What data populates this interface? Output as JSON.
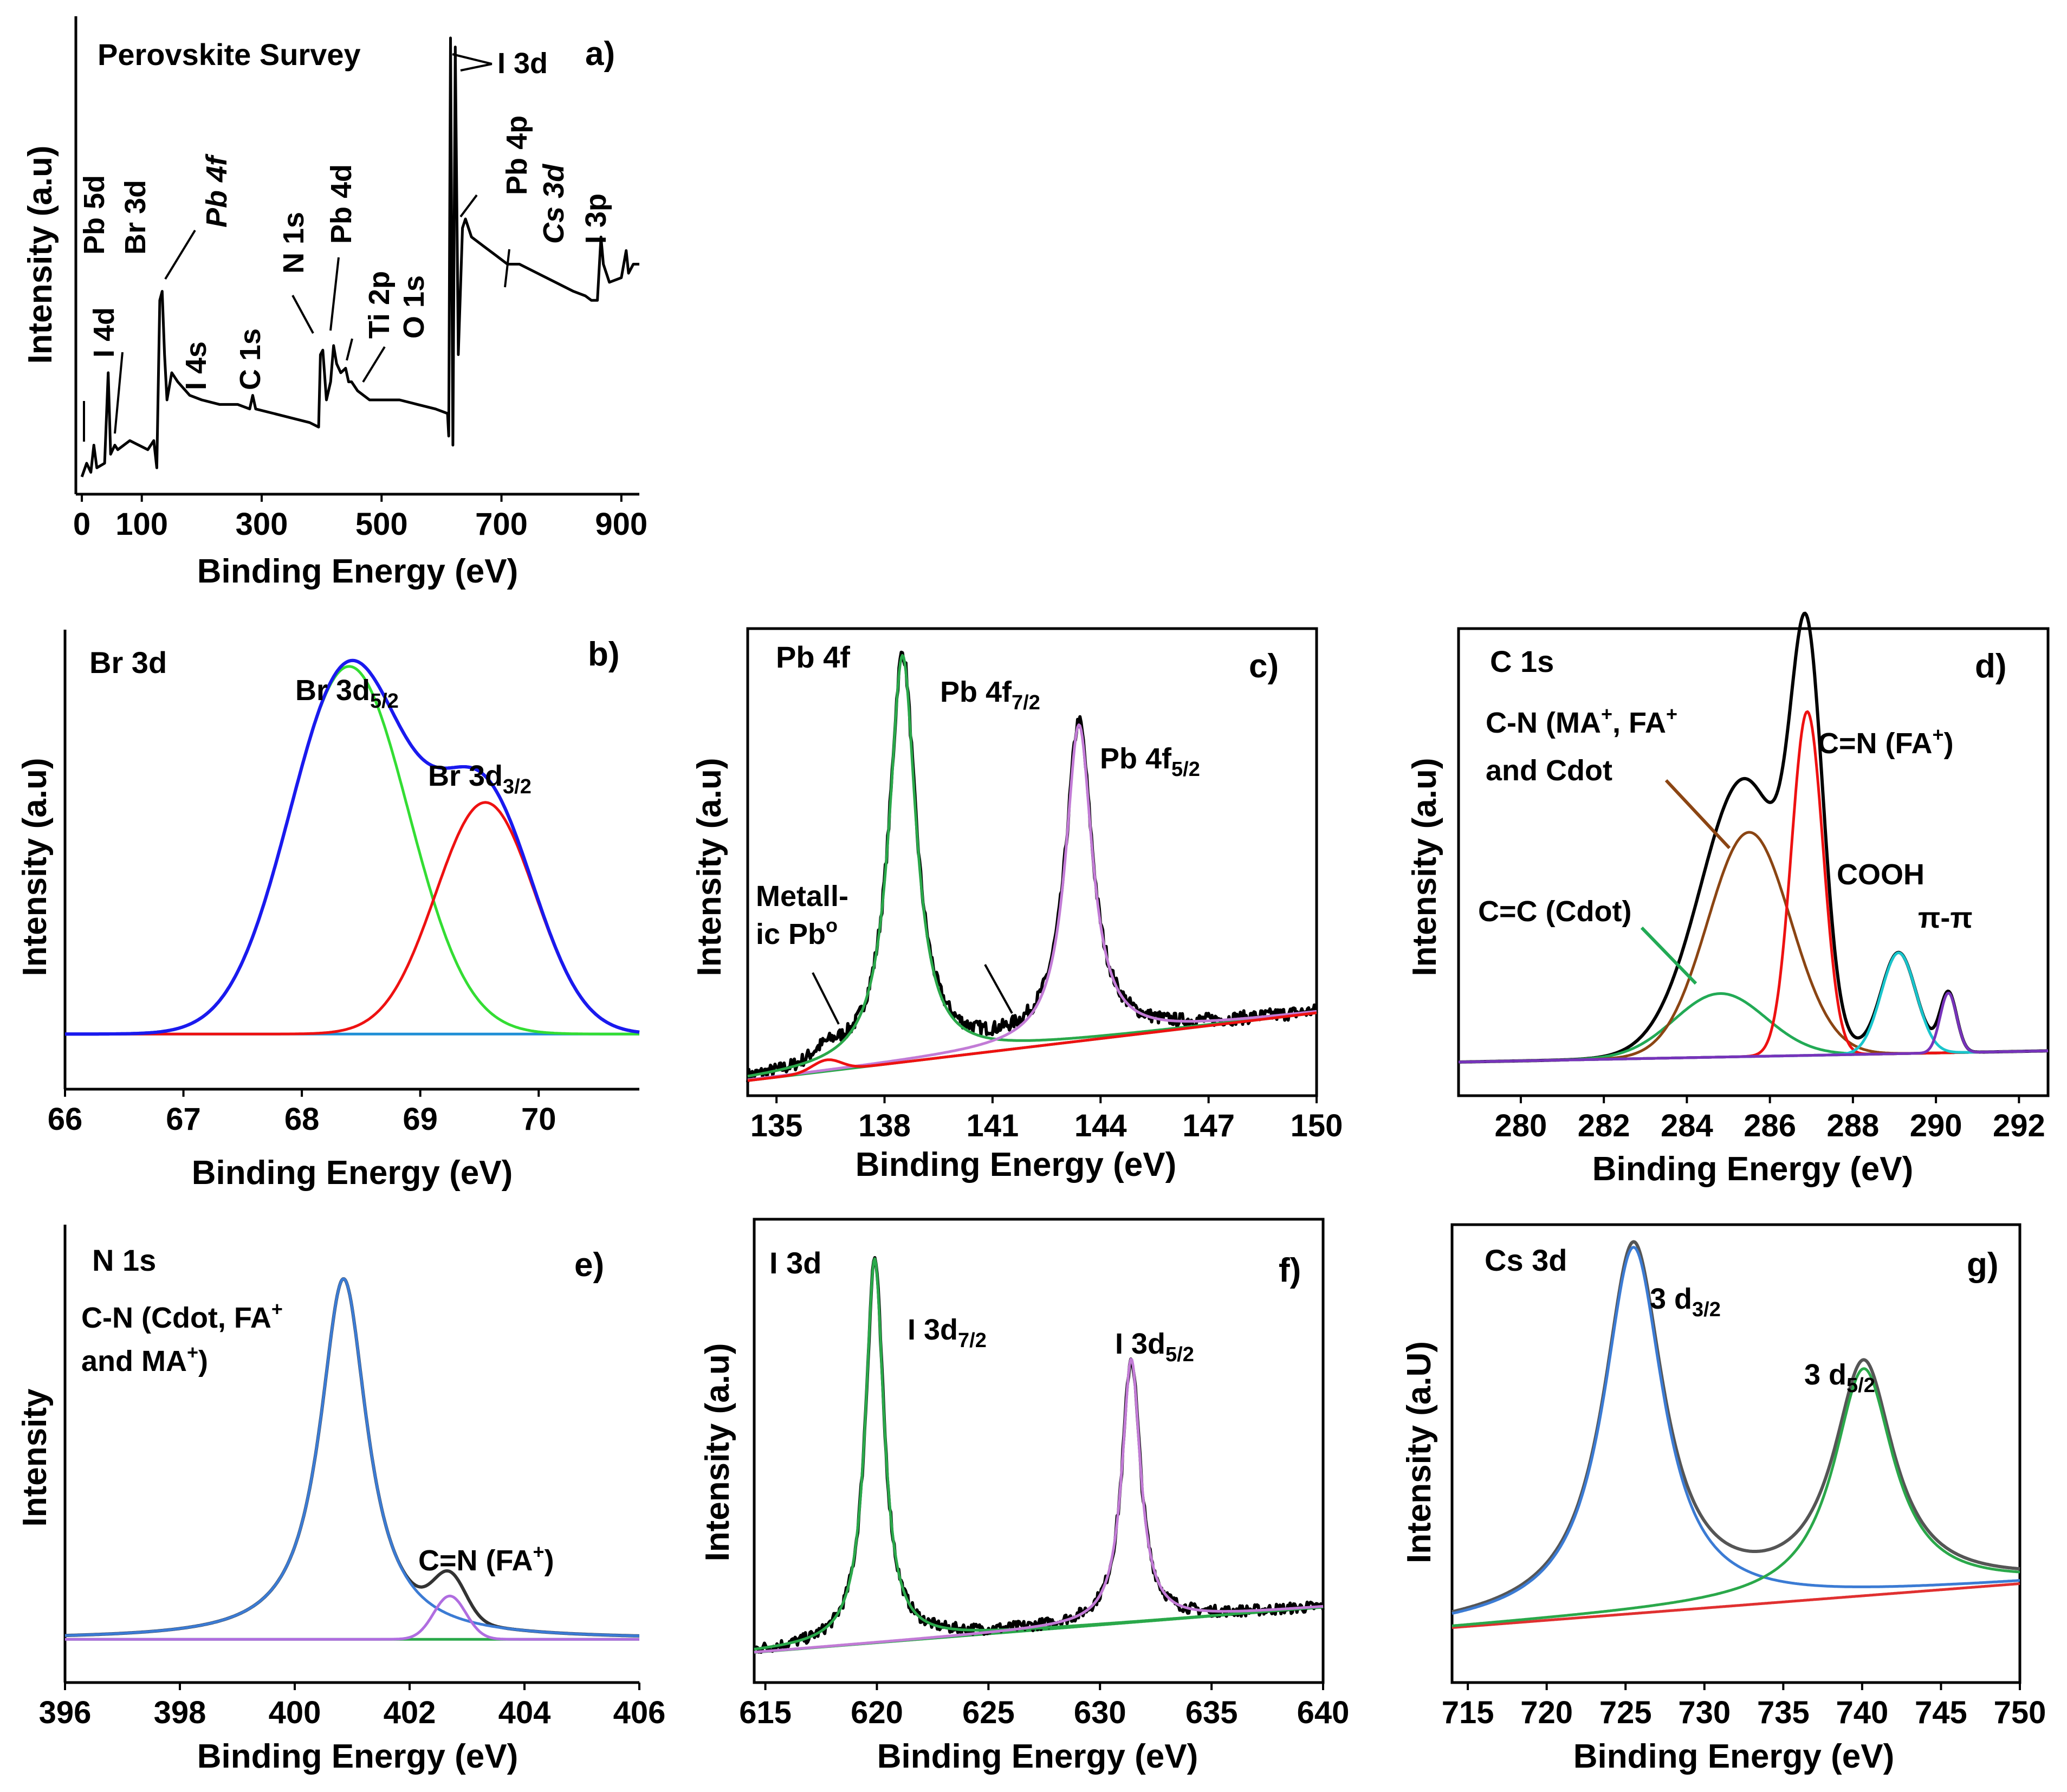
{
  "chart_data": [
    {
      "id": "a",
      "type": "line",
      "title": "Perovskite Survey",
      "panel_label": "a)",
      "xlabel": "Binding Energy (eV)",
      "ylabel": "Intensity (a.u)",
      "xlim": [
        -10,
        930
      ],
      "ylim": [
        0,
        1
      ],
      "xticks": [
        0,
        100,
        300,
        500,
        700,
        900
      ],
      "frame": false,
      "series": [
        {
          "name": "survey",
          "color": "#000000",
          "points": [
            [
              0,
              0.03
            ],
            [
              8,
              0.06
            ],
            [
              15,
              0.04
            ],
            [
              20,
              0.1
            ],
            [
              25,
              0.05
            ],
            [
              38,
              0.06
            ],
            [
              44,
              0.26
            ],
            [
              48,
              0.08
            ],
            [
              55,
              0.1
            ],
            [
              60,
              0.09
            ],
            [
              80,
              0.11
            ],
            [
              95,
              0.1
            ],
            [
              110,
              0.09
            ],
            [
              120,
              0.11
            ],
            [
              125,
              0.05
            ],
            [
              130,
              0.42
            ],
            [
              134,
              0.44
            ],
            [
              138,
              0.3
            ],
            [
              142,
              0.2
            ],
            [
              150,
              0.26
            ],
            [
              160,
              0.24
            ],
            [
              180,
              0.21
            ],
            [
              200,
              0.2
            ],
            [
              230,
              0.19
            ],
            [
              260,
              0.19
            ],
            [
              280,
              0.18
            ],
            [
              285,
              0.21
            ],
            [
              290,
              0.18
            ],
            [
              320,
              0.17
            ],
            [
              350,
              0.16
            ],
            [
              380,
              0.15
            ],
            [
              395,
              0.14
            ],
            [
              398,
              0.3
            ],
            [
              402,
              0.31
            ],
            [
              408,
              0.2
            ],
            [
              415,
              0.24
            ],
            [
              420,
              0.32
            ],
            [
              425,
              0.28
            ],
            [
              432,
              0.26
            ],
            [
              440,
              0.27
            ],
            [
              445,
              0.24
            ],
            [
              450,
              0.24
            ],
            [
              460,
              0.22
            ],
            [
              480,
              0.2
            ],
            [
              500,
              0.2
            ],
            [
              530,
              0.2
            ],
            [
              560,
              0.19
            ],
            [
              590,
              0.18
            ],
            [
              610,
              0.17
            ],
            [
              612,
              0.12
            ],
            [
              615,
              1.0
            ],
            [
              619,
              0.1
            ],
            [
              623,
              0.98
            ],
            [
              628,
              0.3
            ],
            [
              635,
              0.58
            ],
            [
              640,
              0.6
            ],
            [
              650,
              0.56
            ],
            [
              670,
              0.54
            ],
            [
              690,
              0.52
            ],
            [
              710,
              0.5
            ],
            [
              730,
              0.5
            ],
            [
              760,
              0.48
            ],
            [
              790,
              0.46
            ],
            [
              820,
              0.44
            ],
            [
              840,
              0.43
            ],
            [
              850,
              0.42
            ],
            [
              860,
              0.42
            ],
            [
              866,
              0.56
            ],
            [
              870,
              0.5
            ],
            [
              880,
              0.46
            ],
            [
              900,
              0.47
            ],
            [
              908,
              0.53
            ],
            [
              912,
              0.48
            ],
            [
              920,
              0.5
            ],
            [
              930,
              0.5
            ]
          ]
        }
      ],
      "annotations": [
        "Pb 5d",
        "I 4d",
        "Br 3d",
        "Pb 4f",
        "I 4s",
        "C 1s",
        "N 1s",
        "Pb 4d",
        "Ti 2p",
        "O 1s",
        "I 3d",
        "Pb 4p",
        "Cs 3d",
        "I 3p"
      ]
    },
    {
      "id": "b",
      "type": "line",
      "title": "Br 3d",
      "panel_label": "b)",
      "xlabel": "Binding Energy (eV)",
      "ylabel": "Intensity (a.u)",
      "xlim": [
        66,
        70.85
      ],
      "ylim": [
        -0.15,
        1.1
      ],
      "xticks": [
        66,
        67,
        68,
        69,
        70
      ],
      "frame": false,
      "background": 0,
      "components": [
        {
          "name": "Br 3d5/2 fit",
          "color": "#33dd33",
          "center": 68.4,
          "amplitude": 1.0,
          "width": 0.5,
          "shape": "gauss"
        },
        {
          "name": "Br 3d3/2 fit",
          "color": "#ee1111",
          "center": 69.55,
          "amplitude": 0.63,
          "width": 0.42,
          "shape": "gauss"
        }
      ],
      "envelope": {
        "name": "envelope",
        "color": "#1a1aee"
      },
      "baseline": {
        "color": "#1f8fd6"
      },
      "annotations": [
        "Br 3d5/2",
        "Br 3d3/2"
      ]
    },
    {
      "id": "c",
      "type": "line",
      "title": "Pb 4f",
      "panel_label": "c)",
      "xlabel": "Binding Energy (eV)",
      "ylabel": "Intensity (a.u)",
      "xlim": [
        134.2,
        150
      ],
      "ylim": [
        -0.12,
        1.12
      ],
      "xticks": [
        135,
        138,
        141,
        144,
        147,
        150
      ],
      "frame": true,
      "background": [
        [
          134.2,
          -0.08
        ],
        [
          150,
          0.1
        ]
      ],
      "components": [
        {
          "name": "Pb 4f7/2 fit",
          "color": "#2aa84a",
          "center": 138.5,
          "amplitude": 1.08,
          "width": 0.45,
          "shape": "lorentz"
        },
        {
          "name": "Pb 4f5/2 fit",
          "color": "#c27bd6",
          "center": 143.4,
          "amplitude": 0.84,
          "width": 0.45,
          "shape": "lorentz"
        },
        {
          "name": "metallic Pb fit",
          "color": "#ee1111",
          "center": 136.4,
          "amplitude": 0.03,
          "width": 0.4,
          "shape": "gauss"
        }
      ],
      "envelope": {
        "name": "measured",
        "color": "#000000",
        "noise": 0.018
      },
      "annotations": [
        "Pb 4f7/2",
        "Pb 4f5/2",
        "Metall-",
        "ic Pbo"
      ]
    },
    {
      "id": "d",
      "type": "line",
      "title": "C 1s",
      "panel_label": "d)",
      "xlabel": "Binding Energy (eV)",
      "ylabel": "Intensity (a.u)",
      "xlim": [
        278.5,
        292.7
      ],
      "ylim": [
        -0.1,
        1.15
      ],
      "xticks": [
        280,
        282,
        284,
        286,
        288,
        290,
        292
      ],
      "frame": true,
      "background": [
        [
          278.5,
          -0.01
        ],
        [
          292.7,
          0.02
        ]
      ],
      "components": [
        {
          "name": "C=C (Cdot)",
          "color": "#22aa55",
          "center": 284.8,
          "amplitude": 0.17,
          "width": 1.1,
          "shape": "gauss"
        },
        {
          "name": "C-N (MA+, FA+ and Cdot)",
          "color": "#8b4513",
          "center": 285.5,
          "amplitude": 0.6,
          "width": 1.0,
          "shape": "gauss"
        },
        {
          "name": "C=N (FA+)",
          "color": "#ee1111",
          "center": 286.9,
          "amplitude": 0.92,
          "width": 0.38,
          "shape": "gauss"
        },
        {
          "name": "COOH",
          "color": "#19c5cc",
          "center": 289.1,
          "amplitude": 0.27,
          "width": 0.42,
          "shape": "gauss"
        },
        {
          "name": "pi-pi",
          "color": "#7733bb",
          "center": 290.3,
          "amplitude": 0.16,
          "width": 0.2,
          "shape": "gauss"
        }
      ],
      "envelope": {
        "name": "envelope",
        "color": "#000000"
      },
      "annotations": [
        "C-N (MA+, FA+",
        "and Cdot",
        "C=N (FA+)",
        "COOH",
        "C=C (Cdot)",
        "π-π"
      ]
    },
    {
      "id": "e",
      "type": "line",
      "title": "N 1s",
      "panel_label": "e)",
      "xlabel": "Binding Energy (eV)",
      "ylabel": "Intensity",
      "xlim": [
        396,
        406
      ],
      "ylim": [
        -0.12,
        1.15
      ],
      "xticks": [
        396,
        398,
        400,
        402,
        404,
        406
      ],
      "frame": false,
      "background": [
        [
          396,
          0.0
        ],
        [
          406,
          0.0
        ]
      ],
      "components": [
        {
          "name": "C-N (Cdot, FA+ and MA+)",
          "color": "#3b7bd4",
          "center": 400.85,
          "amplitude": 1.0,
          "width": 0.5,
          "shape": "lorentz"
        },
        {
          "name": "C=N (FA+)",
          "color": "#b06de0",
          "center": 402.7,
          "amplitude": 0.12,
          "width": 0.28,
          "shape": "gauss"
        }
      ],
      "envelope": {
        "name": "envelope",
        "color": "#333333"
      },
      "annotations": [
        "C-N (Cdot, FA+",
        "and MA+)",
        "C=N (FA+)"
      ]
    },
    {
      "id": "f",
      "type": "line",
      "title": "I 3d",
      "panel_label": "f)",
      "xlabel": "Binding Energy (eV)",
      "ylabel": "Intensity (a.u)",
      "xlim": [
        614.5,
        640
      ],
      "ylim": [
        -0.08,
        1.15
      ],
      "xticks": [
        615,
        620,
        625,
        630,
        635,
        640
      ],
      "frame": true,
      "background": [
        [
          614.5,
          0.0
        ],
        [
          640,
          0.12
        ]
      ],
      "components": [
        {
          "name": "I 3d7/2 fit",
          "color": "#2aa84a",
          "center": 619.9,
          "amplitude": 1.02,
          "width": 0.5,
          "shape": "lorentz"
        },
        {
          "name": "I 3d5/2 fit",
          "color": "#c27bd6",
          "center": 631.4,
          "amplitude": 0.7,
          "width": 0.5,
          "shape": "lorentz"
        }
      ],
      "envelope": {
        "name": "measured",
        "color": "#000000",
        "noise": 0.015
      },
      "annotations": [
        "I 3d7/2",
        "I 3d5/2"
      ]
    },
    {
      "id": "g",
      "type": "line",
      "title": "Cs 3d",
      "panel_label": "g)",
      "xlabel": "Binding Energy (eV)",
      "ylabel": "Intensity (a.U)",
      "xlim": [
        714,
        750
      ],
      "ylim": [
        -0.15,
        1.1
      ],
      "xticks": [
        715,
        720,
        725,
        730,
        735,
        740,
        745,
        750
      ],
      "frame": true,
      "background": [
        [
          714,
          0.0
        ],
        [
          750,
          0.12
        ]
      ],
      "components": [
        {
          "name": "3 d3/2 fit",
          "color": "#3b7bd4",
          "center": 725.5,
          "amplitude": 1.0,
          "width": 2.3,
          "shape": "lorentz"
        },
        {
          "name": "3 d5/2 fit",
          "color": "#2aa84a",
          "center": 740.1,
          "amplitude": 0.62,
          "width": 2.3,
          "shape": "lorentz"
        }
      ],
      "envelope": {
        "name": "envelope",
        "color": "#555555"
      },
      "background_color": "#e03030",
      "annotations": [
        "3 d3/2",
        "3 d5/2"
      ]
    }
  ]
}
